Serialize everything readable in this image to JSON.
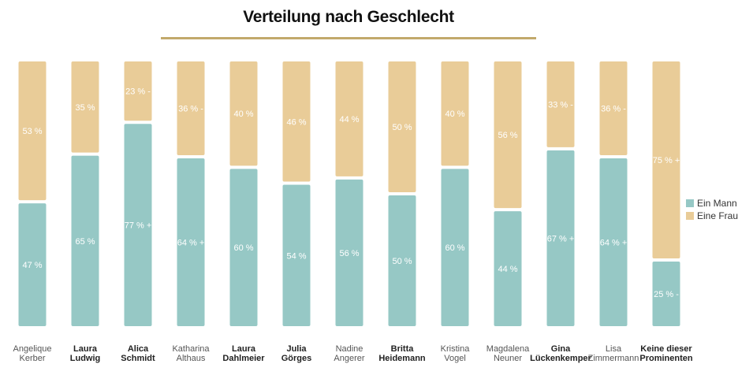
{
  "colors": {
    "mann": "#96c8c5",
    "frau": "#e9cc98",
    "title_rule": "#c2a96b"
  },
  "chart_data": {
    "type": "bar",
    "stacked": true,
    "title": "Verteilung nach Geschlecht",
    "categories": [
      [
        "Angelique",
        "Kerber"
      ],
      [
        "Laura",
        "Ludwig"
      ],
      [
        "Alica",
        "Schmidt"
      ],
      [
        "Katharina",
        "Althaus"
      ],
      [
        "Laura",
        "Dahlmeier"
      ],
      [
        "Julia",
        "Görges"
      ],
      [
        "Nadine",
        "Angerer"
      ],
      [
        "Britta",
        "Heidemann"
      ],
      [
        "Kristina",
        "Vogel"
      ],
      [
        "Magdalena",
        "Neuner"
      ],
      [
        "Gina",
        "Lückenkemper"
      ],
      [
        "Lisa",
        "Zimmermann"
      ],
      [
        "Keine dieser",
        "Prominenten"
      ]
    ],
    "category_bold": [
      false,
      true,
      true,
      false,
      true,
      true,
      false,
      true,
      false,
      false,
      true,
      false,
      true
    ],
    "series": [
      {
        "name": "Ein Mann",
        "values": [
          47,
          65,
          77,
          64,
          60,
          54,
          56,
          50,
          60,
          44,
          67,
          64,
          25
        ],
        "labels": [
          "47 %",
          "65 %",
          "77 % +",
          "64 % +",
          "60 %",
          "54 %",
          "56 %",
          "50 %",
          "60 %",
          "44 %",
          "67 % +",
          "64 % +",
          "25 % -"
        ]
      },
      {
        "name": "Eine Frau",
        "values": [
          53,
          35,
          23,
          36,
          40,
          46,
          44,
          50,
          40,
          56,
          33,
          36,
          75
        ],
        "labels": [
          "53 %",
          "35 %",
          "23 % -",
          "36 % -",
          "40 %",
          "46 %",
          "44 %",
          "50 %",
          "40 %",
          "56 %",
          "33 % -",
          "36 % -",
          "75 % +"
        ]
      }
    ],
    "ylim": [
      0,
      100
    ],
    "grid": false,
    "legend_position": "right"
  }
}
